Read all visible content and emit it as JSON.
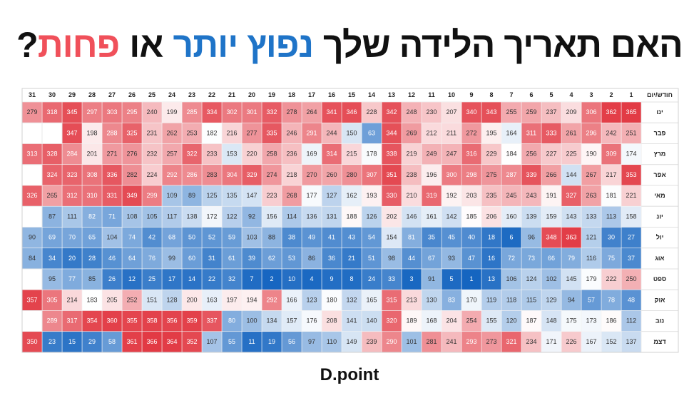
{
  "title_parts": [
    {
      "text": "האם תאריך הלידה שלך",
      "color": "#111111"
    },
    {
      "text": "נפוץ יותר",
      "color": "#1f74c8"
    },
    {
      "text": "או",
      "color": "#111111"
    },
    {
      "text": "פחות",
      "color": "#f0505a"
    },
    {
      "text": "?",
      "color": "#111111"
    }
  ],
  "table": {
    "corner": "חודש/יום",
    "columns": [
      1,
      2,
      3,
      4,
      5,
      6,
      7,
      8,
      9,
      10,
      11,
      12,
      13,
      14,
      15,
      16,
      17,
      18,
      19,
      20,
      21,
      22,
      23,
      24,
      25,
      26,
      27,
      28,
      29,
      30,
      31
    ],
    "colorscale": {
      "low": "#1565c0",
      "mid": "#ffffff",
      "high": "#e23a44"
    },
    "rows": [
      {
        "name": "ינו",
        "values": [
          365,
          362,
          306,
          209,
          237,
          259,
          255,
          343,
          340,
          207,
          230,
          248,
          342,
          228,
          346,
          341,
          264,
          278,
          332,
          301,
          302,
          334,
          285,
          199,
          240,
          295,
          303,
          297,
          345,
          318,
          279
        ]
      },
      {
        "name": "פבר",
        "values": [
          251,
          242,
          296,
          261,
          333,
          311,
          164,
          195,
          272,
          211,
          212,
          269,
          344,
          63,
          150,
          244,
          291,
          246,
          335,
          277,
          216,
          182,
          253,
          262,
          231,
          325,
          288,
          198,
          347,
          null,
          null
        ]
      },
      {
        "name": "מרץ",
        "values": [
          174,
          309,
          190,
          225,
          227,
          256,
          184,
          229,
          316,
          247,
          249,
          219,
          338,
          178,
          215,
          314,
          169,
          236,
          258,
          220,
          153,
          233,
          322,
          257,
          232,
          276,
          271,
          201,
          284,
          328,
          313
        ]
      },
      {
        "name": "אפר",
        "values": [
          353,
          217,
          267,
          144,
          266,
          339,
          287,
          275,
          298,
          300,
          196,
          238,
          351,
          307,
          280,
          260,
          270,
          218,
          274,
          329,
          304,
          283,
          286,
          292,
          224,
          282,
          336,
          308,
          323,
          324,
          null
        ]
      },
      {
        "name": "מאי",
        "values": [
          221,
          181,
          263,
          327,
          191,
          243,
          245,
          235,
          203,
          192,
          319,
          210,
          330,
          193,
          162,
          127,
          177,
          268,
          223,
          147,
          135,
          125,
          89,
          109,
          299,
          349,
          331,
          310,
          312,
          265,
          326
        ]
      },
      {
        "name": "יונ",
        "values": [
          158,
          113,
          133,
          143,
          159,
          139,
          160,
          206,
          185,
          142,
          161,
          146,
          202,
          126,
          188,
          131,
          136,
          114,
          156,
          92,
          122,
          172,
          138,
          117,
          105,
          108,
          71,
          82,
          111,
          87,
          null
        ]
      },
      {
        "name": "יול",
        "values": [
          27,
          30,
          121,
          363,
          348,
          96,
          6,
          18,
          40,
          45,
          35,
          81,
          154,
          54,
          43,
          41,
          49,
          38,
          88,
          103,
          59,
          52,
          50,
          68,
          42,
          74,
          104,
          65,
          70,
          69,
          90
        ]
      },
      {
        "name": "אוג",
        "values": [
          37,
          75,
          116,
          79,
          66,
          73,
          72,
          16,
          47,
          93,
          67,
          44,
          98,
          51,
          21,
          36,
          86,
          53,
          62,
          39,
          61,
          31,
          60,
          99,
          76,
          64,
          46,
          28,
          20,
          34,
          84
        ]
      },
      {
        "name": "ספט",
        "values": [
          250,
          222,
          179,
          145,
          102,
          124,
          106,
          13,
          1,
          5,
          91,
          3,
          33,
          24,
          8,
          9,
          4,
          10,
          2,
          7,
          32,
          22,
          14,
          17,
          25,
          12,
          26,
          85,
          77,
          95,
          null
        ]
      },
      {
        "name": "אוק",
        "values": [
          48,
          78,
          57,
          94,
          129,
          115,
          118,
          119,
          170,
          83,
          130,
          213,
          315,
          165,
          132,
          180,
          123,
          166,
          292,
          194,
          197,
          163,
          200,
          128,
          151,
          252,
          205,
          183,
          214,
          305,
          357
        ]
      },
      {
        "name": "נוב",
        "values": [
          112,
          186,
          173,
          175,
          148,
          187,
          120,
          155,
          254,
          204,
          168,
          189,
          320,
          140,
          141,
          208,
          176,
          157,
          134,
          100,
          80,
          337,
          359,
          356,
          358,
          355,
          360,
          354,
          317,
          289,
          null
        ]
      },
      {
        "name": "דצמ",
        "values": [
          137,
          152,
          167,
          226,
          171,
          234,
          321,
          273,
          293,
          241,
          281,
          101,
          290,
          239,
          149,
          110,
          97,
          56,
          19,
          11,
          55,
          107,
          352,
          364,
          366,
          361,
          58,
          29,
          15,
          23,
          350
        ]
      }
    ]
  },
  "logo": "D.point"
}
